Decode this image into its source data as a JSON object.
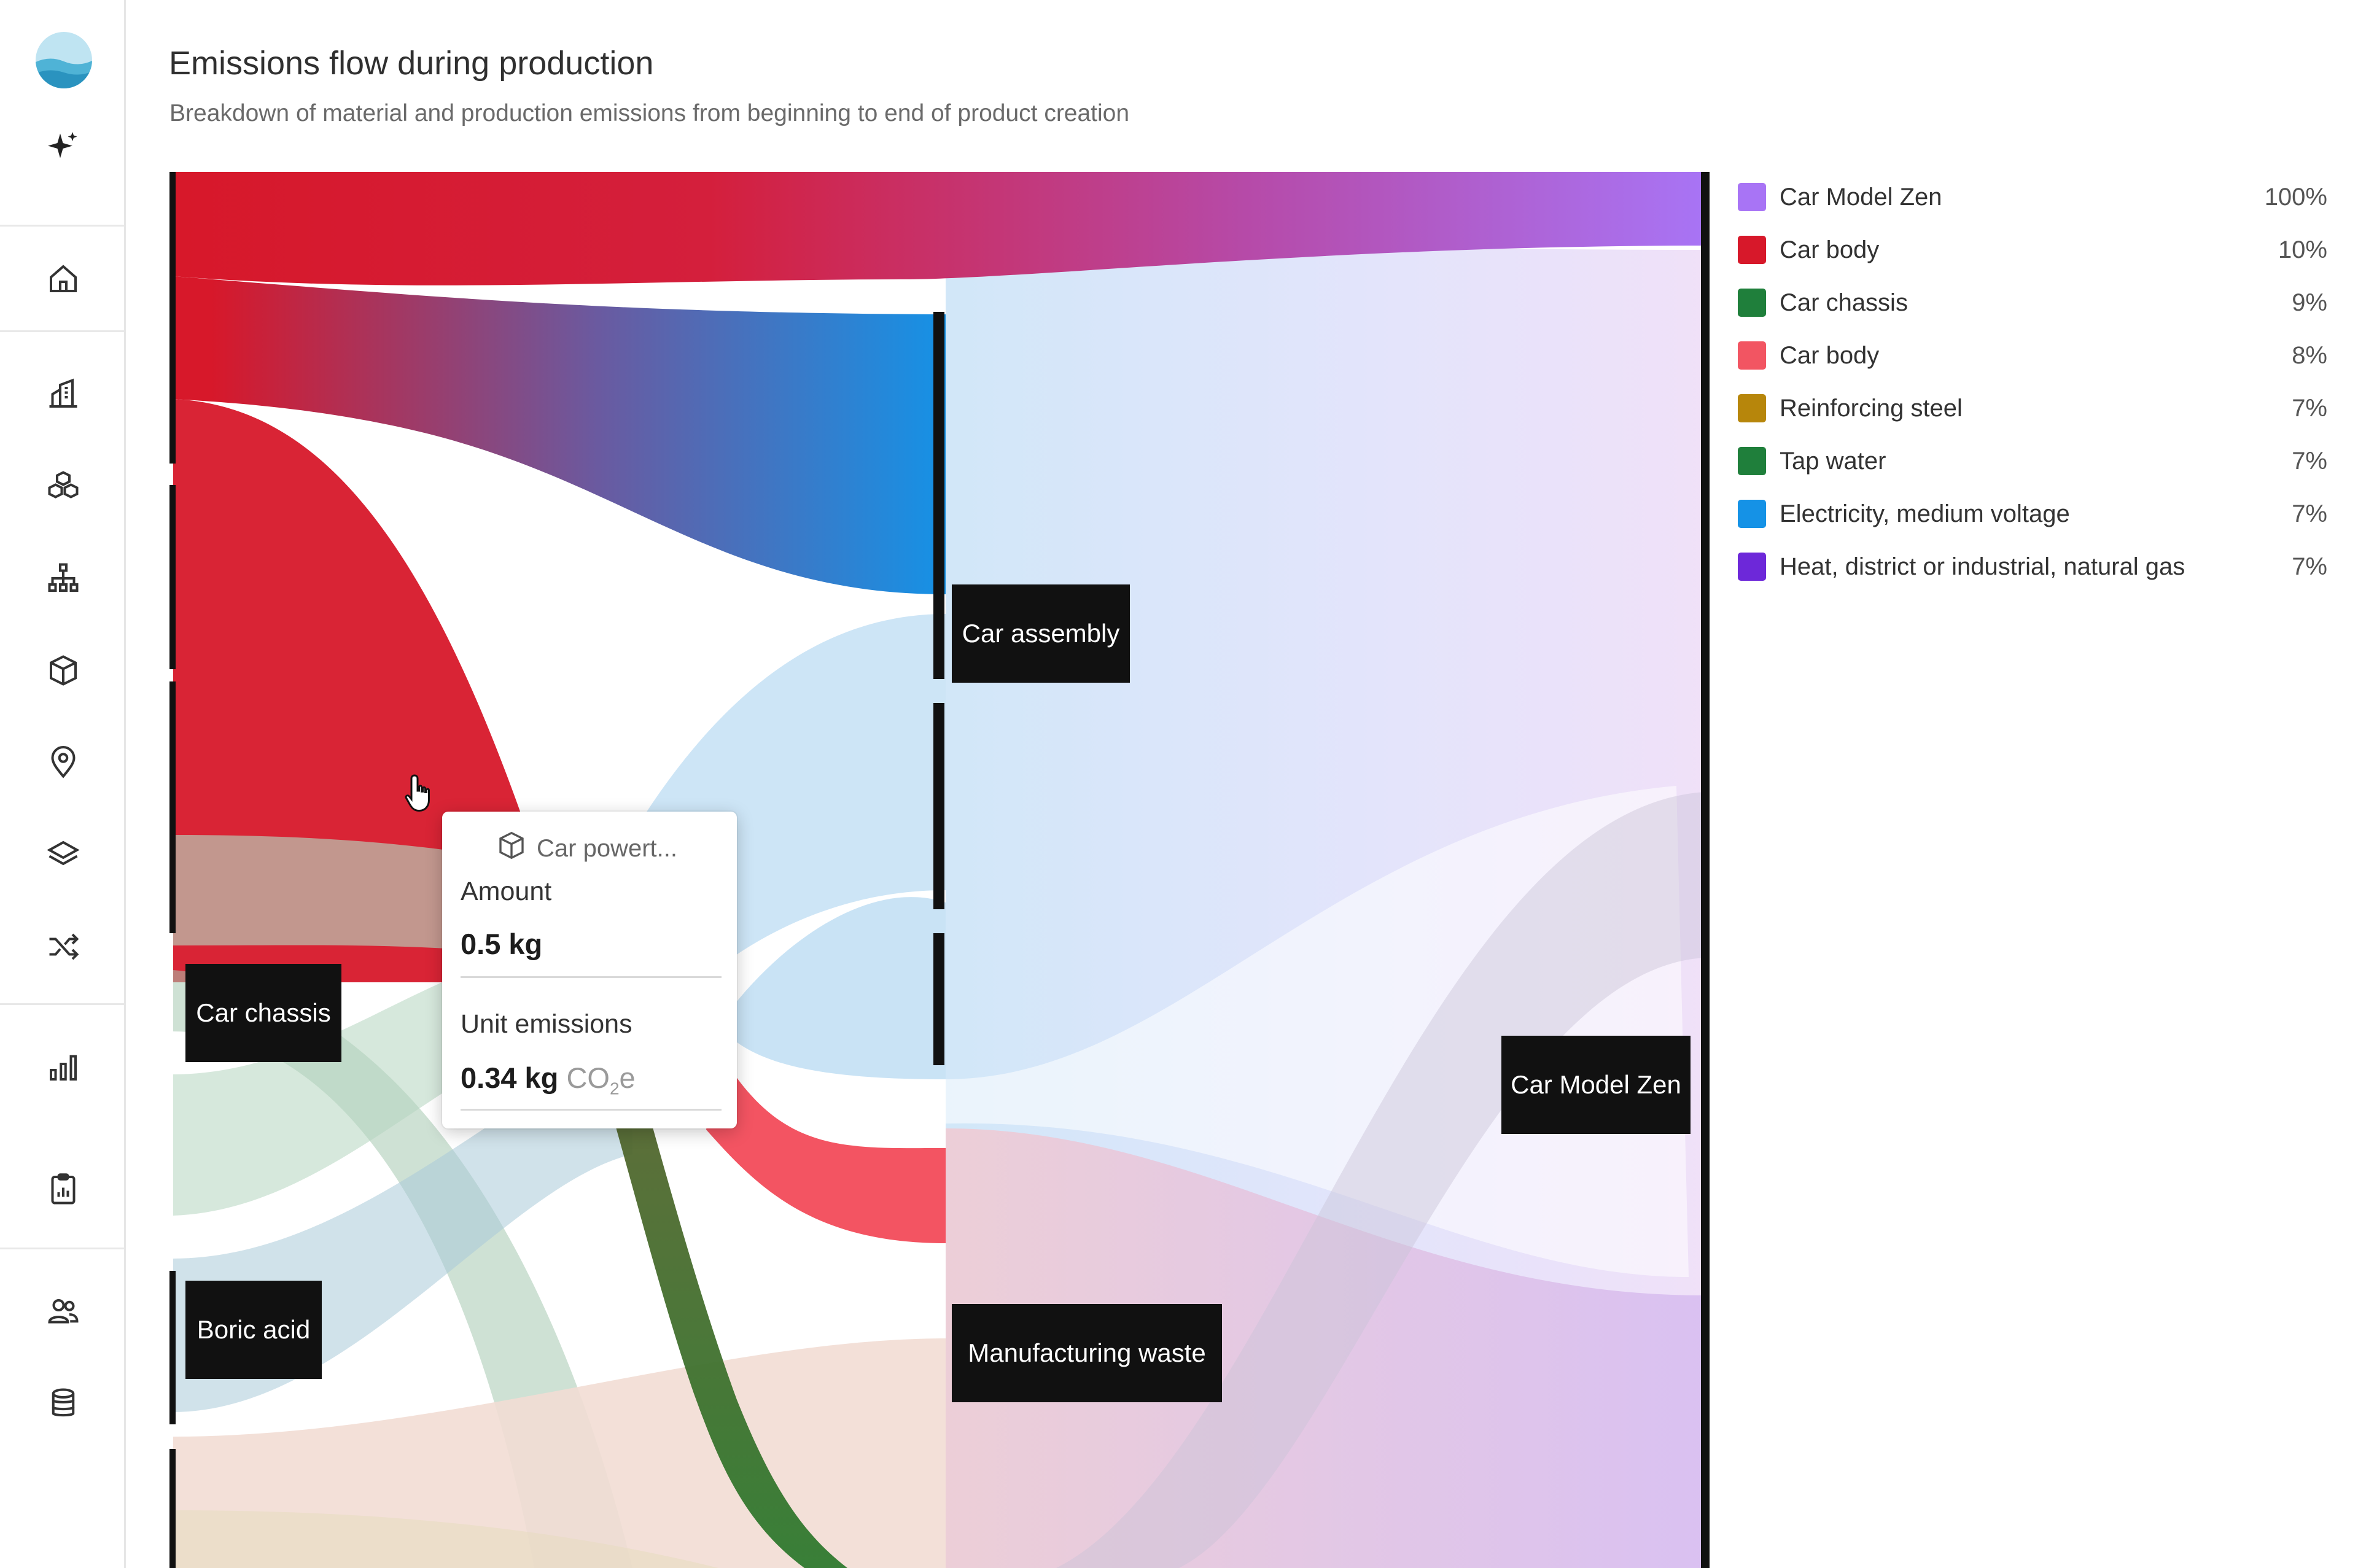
{
  "header": {
    "title": "Emissions flow during production",
    "subtitle": "Breakdown of material and production emissions from beginning to end of product creation"
  },
  "sidebar": {
    "items": [
      {
        "icon": "sparkle-icon"
      },
      {
        "icon": "home-icon"
      },
      {
        "icon": "buildings-icon"
      },
      {
        "icon": "components-icon"
      },
      {
        "icon": "hierarchy-icon"
      },
      {
        "icon": "cube-icon"
      },
      {
        "icon": "location-pin-icon"
      },
      {
        "icon": "layers-icon"
      },
      {
        "icon": "shuffle-icon"
      },
      {
        "icon": "bar-chart-icon"
      },
      {
        "icon": "clipboard-report-icon"
      },
      {
        "icon": "users-icon"
      },
      {
        "icon": "database-icon"
      }
    ]
  },
  "sankey": {
    "nodes": {
      "car_chassis": "Car chassis",
      "boric_acid": "Boric acid",
      "car_assembly": "Car assembly",
      "manufacturing_waste": "Manufacturing waste",
      "car_model_zen": "Car Model Zen"
    }
  },
  "tooltip": {
    "title": "Car powert...",
    "amount_label": "Amount",
    "amount_value": "0.5 kg",
    "unit_emissions_label": "Unit emissions",
    "unit_emissions_value": "0.34 kg",
    "unit_emissions_unit_main": "CO",
    "unit_emissions_unit_sub": "2",
    "unit_emissions_unit_tail": "e"
  },
  "legend": {
    "items": [
      {
        "label": "Car Model Zen",
        "percent": "100%",
        "color": "#a874f5"
      },
      {
        "label": "Car body",
        "percent": "10%",
        "color": "#d7182a"
      },
      {
        "label": "Car chassis",
        "percent": "9%",
        "color": "#1f7f3b"
      },
      {
        "label": "Car body",
        "percent": "8%",
        "color": "#f25562"
      },
      {
        "label": "Reinforcing steel",
        "percent": "7%",
        "color": "#b7860b"
      },
      {
        "label": "Tap water",
        "percent": "7%",
        "color": "#1f7f3b"
      },
      {
        "label": "Electricity, medium voltage",
        "percent": "7%",
        "color": "#1592e6"
      },
      {
        "label": "Heat, district or industrial, natural gas",
        "percent": "7%",
        "color": "#6d28d9"
      }
    ]
  }
}
